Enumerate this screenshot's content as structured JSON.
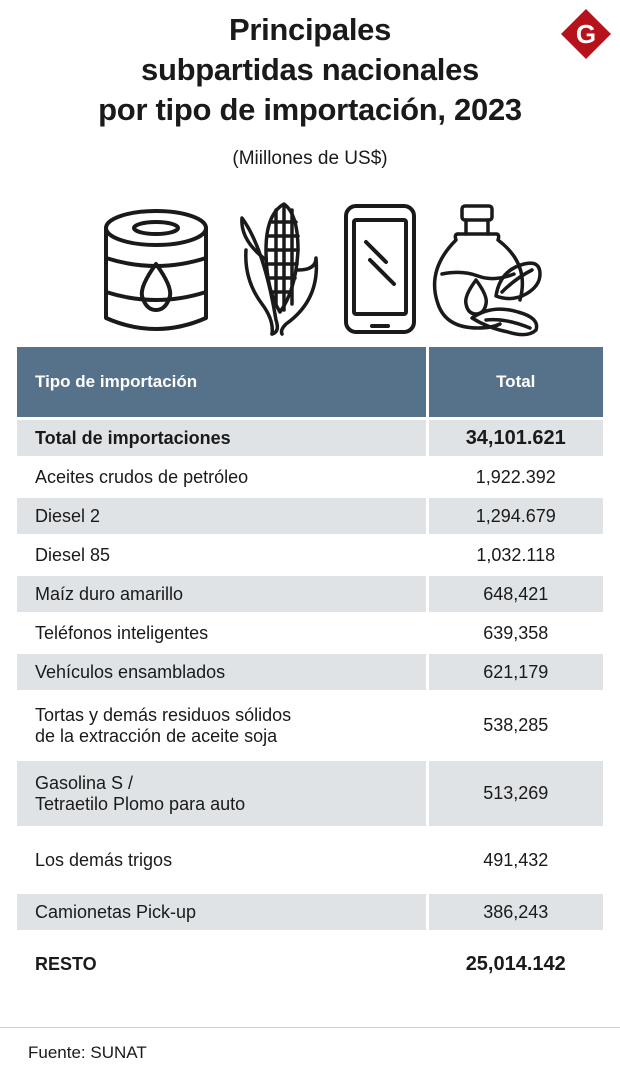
{
  "header": {
    "title_lines": [
      "Principales",
      "subpartidas nacionales",
      "por tipo de importación, 2023"
    ],
    "subtitle": "(Miillones de US$)",
    "logo_letter": "G",
    "logo_color": "#b5121b"
  },
  "icons": [
    "oil-barrel-icon",
    "corn-icon",
    "smartphone-icon",
    "oil-bottle-soy-icon"
  ],
  "table": {
    "headers": [
      "Tipo de importación",
      "Total"
    ],
    "header_color": "#56718a",
    "shade_color": "#dfe3e6",
    "rows": [
      {
        "label": [
          "Total de importaciones"
        ],
        "value": "34,101.621"
      },
      {
        "label": [
          "Aceites crudos de petróleo"
        ],
        "value": "1,922.392"
      },
      {
        "label": [
          "Diesel 2"
        ],
        "value": "1,294.679"
      },
      {
        "label": [
          "Diesel 85"
        ],
        "value": "1,032.118"
      },
      {
        "label": [
          "Maíz duro amarillo"
        ],
        "value": "648,421"
      },
      {
        "label": [
          "Teléfonos inteligentes"
        ],
        "value": "639,358"
      },
      {
        "label": [
          "Vehículos ensamblados"
        ],
        "value": "621,179"
      },
      {
        "label": [
          "Tortas y demás residuos sólidos",
          "de la extracción de aceite soja"
        ],
        "value": "538,285"
      },
      {
        "label": [
          "Gasolina S /",
          "Tetraetilo Plomo para auto"
        ],
        "value": "513,269"
      },
      {
        "label": [
          "Los demás trigos"
        ],
        "value": "491,432"
      },
      {
        "label": [
          "Camionetas Pick-up"
        ],
        "value": "386,243"
      },
      {
        "label": [
          "RESTO"
        ],
        "value": "25,014.142"
      }
    ]
  },
  "footer": {
    "source": "Fuente: SUNAT"
  }
}
